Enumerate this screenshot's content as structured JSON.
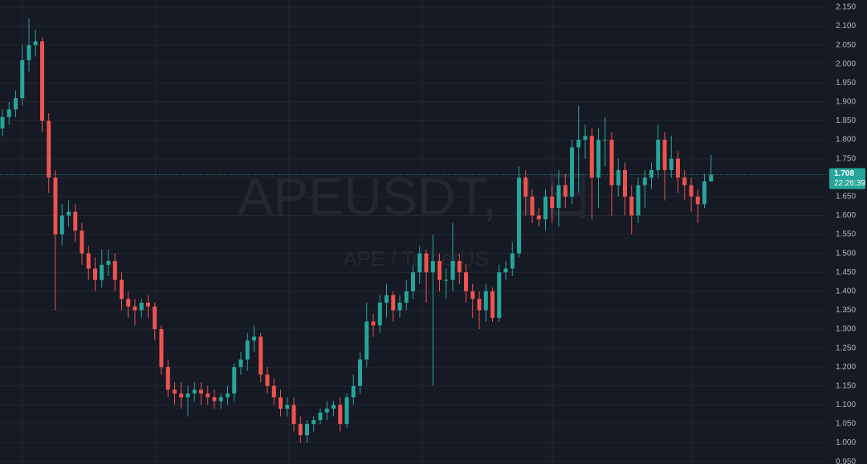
{
  "chart_data": {
    "type": "candlestick",
    "watermark": "APEUSDT, 1日",
    "watermark_subtitle": "APE / TetherUS",
    "last_price": 1.708,
    "countdown": "22:26:39",
    "up_color": "#26a69a",
    "down_color": "#ef5350",
    "grid": true,
    "ylim": [
      0.944,
      2.169
    ],
    "yticks": [
      {
        "value": 2.15,
        "label": "2.150"
      },
      {
        "value": 2.1,
        "label": "2.100"
      },
      {
        "value": 2.05,
        "label": "2.050"
      },
      {
        "value": 2.0,
        "label": "2.000"
      },
      {
        "value": 1.95,
        "label": "1.950"
      },
      {
        "value": 1.9,
        "label": "1.900"
      },
      {
        "value": 1.85,
        "label": "1.850"
      },
      {
        "value": 1.8,
        "label": "1.800"
      },
      {
        "value": 1.75,
        "label": "1.750"
      },
      {
        "value": 1.7,
        "label": "1.700"
      },
      {
        "value": 1.65,
        "label": "1.650"
      },
      {
        "value": 1.6,
        "label": "1.600"
      },
      {
        "value": 1.55,
        "label": "1.550"
      },
      {
        "value": 1.5,
        "label": "1.500"
      },
      {
        "value": 1.45,
        "label": "1.450"
      },
      {
        "value": 1.4,
        "label": "1.400"
      },
      {
        "value": 1.35,
        "label": "1.350"
      },
      {
        "value": 1.3,
        "label": "1.300"
      },
      {
        "value": 1.25,
        "label": "1.250"
      },
      {
        "value": 1.2,
        "label": "1.200"
      },
      {
        "value": 1.15,
        "label": "1.150"
      },
      {
        "value": 1.1,
        "label": "1.100"
      },
      {
        "value": 1.05,
        "label": "1.050"
      },
      {
        "value": 1.0,
        "label": "1.000"
      },
      {
        "value": 0.95,
        "label": "0.950"
      }
    ],
    "open": [
      1.83,
      1.86,
      1.88,
      1.91,
      2.01,
      2.05,
      2.06,
      1.85,
      1.7,
      1.55,
      1.6,
      1.61,
      1.56,
      1.5,
      1.46,
      1.43,
      1.47,
      1.48,
      1.43,
      1.38,
      1.36,
      1.35,
      1.37,
      1.36,
      1.3,
      1.2,
      1.14,
      1.13,
      1.12,
      1.13,
      1.14,
      1.13,
      1.12,
      1.11,
      1.12,
      1.13,
      1.2,
      1.22,
      1.27,
      1.28,
      1.18,
      1.15,
      1.12,
      1.09,
      1.1,
      1.05,
      1.02,
      1.05,
      1.06,
      1.08,
      1.09,
      1.1,
      1.05,
      1.12,
      1.15,
      1.22,
      1.32,
      1.31,
      1.37,
      1.39,
      1.35,
      1.37,
      1.4,
      1.45,
      1.5,
      1.45,
      1.48,
      1.43,
      1.43,
      1.48,
      1.45,
      1.4,
      1.38,
      1.35,
      1.4,
      1.33,
      1.45,
      1.46,
      1.5,
      1.7,
      1.65,
      1.6,
      1.59,
      1.65,
      1.62,
      1.68,
      1.65,
      1.78,
      1.8,
      1.81,
      1.7,
      1.8,
      1.8,
      1.68,
      1.72,
      1.65,
      1.6,
      1.68,
      1.7,
      1.72,
      1.8,
      1.72,
      1.75,
      1.7,
      1.68,
      1.65,
      1.63,
      1.69
    ],
    "high": [
      1.88,
      1.9,
      1.93,
      2.05,
      2.12,
      2.09,
      2.07,
      1.87,
      1.72,
      1.63,
      1.64,
      1.63,
      1.58,
      1.52,
      1.49,
      1.51,
      1.51,
      1.5,
      1.45,
      1.4,
      1.38,
      1.38,
      1.39,
      1.37,
      1.31,
      1.22,
      1.16,
      1.16,
      1.15,
      1.16,
      1.16,
      1.15,
      1.14,
      1.13,
      1.15,
      1.21,
      1.24,
      1.29,
      1.31,
      1.29,
      1.2,
      1.17,
      1.14,
      1.12,
      1.12,
      1.07,
      1.06,
      1.07,
      1.09,
      1.11,
      1.11,
      1.12,
      1.13,
      1.18,
      1.24,
      1.37,
      1.34,
      1.39,
      1.42,
      1.4,
      1.39,
      1.43,
      1.47,
      1.52,
      1.51,
      1.55,
      1.5,
      1.46,
      1.58,
      1.5,
      1.47,
      1.42,
      1.4,
      1.42,
      1.41,
      1.47,
      1.48,
      1.53,
      1.73,
      1.72,
      1.67,
      1.62,
      1.67,
      1.68,
      1.72,
      1.71,
      1.8,
      1.89,
      1.84,
      1.83,
      1.83,
      1.86,
      1.82,
      1.75,
      1.74,
      1.68,
      1.7,
      1.72,
      1.74,
      1.84,
      1.82,
      1.81,
      1.77,
      1.72,
      1.7,
      1.67,
      1.71,
      1.76
    ],
    "low": [
      1.81,
      1.84,
      1.86,
      1.89,
      1.98,
      2.02,
      1.82,
      1.66,
      1.35,
      1.52,
      1.57,
      1.53,
      1.47,
      1.43,
      1.4,
      1.41,
      1.44,
      1.4,
      1.35,
      1.33,
      1.31,
      1.33,
      1.33,
      1.27,
      1.18,
      1.12,
      1.1,
      1.09,
      1.07,
      1.11,
      1.1,
      1.1,
      1.09,
      1.09,
      1.1,
      1.11,
      1.18,
      1.19,
      1.24,
      1.16,
      1.13,
      1.1,
      1.07,
      1.07,
      1.03,
      1.0,
      1.0,
      1.03,
      1.05,
      1.06,
      1.07,
      1.03,
      1.04,
      1.1,
      1.13,
      1.2,
      1.28,
      1.29,
      1.33,
      1.32,
      1.33,
      1.35,
      1.38,
      1.42,
      1.37,
      1.15,
      1.4,
      1.38,
      1.4,
      1.42,
      1.37,
      1.33,
      1.3,
      1.32,
      1.32,
      1.32,
      1.43,
      1.44,
      1.49,
      1.6,
      1.58,
      1.57,
      1.56,
      1.58,
      1.57,
      1.62,
      1.63,
      1.66,
      1.75,
      1.59,
      1.62,
      1.73,
      1.6,
      1.65,
      1.6,
      1.55,
      1.58,
      1.62,
      1.67,
      1.7,
      1.64,
      1.7,
      1.66,
      1.64,
      1.61,
      1.58,
      1.62,
      1.69
    ],
    "close": [
      1.86,
      1.88,
      1.91,
      2.01,
      2.05,
      2.06,
      1.85,
      1.7,
      1.55,
      1.6,
      1.61,
      1.56,
      1.5,
      1.46,
      1.43,
      1.47,
      1.48,
      1.43,
      1.38,
      1.36,
      1.35,
      1.37,
      1.36,
      1.3,
      1.2,
      1.14,
      1.13,
      1.12,
      1.13,
      1.14,
      1.13,
      1.12,
      1.11,
      1.12,
      1.13,
      1.2,
      1.22,
      1.27,
      1.28,
      1.18,
      1.15,
      1.12,
      1.09,
      1.1,
      1.05,
      1.02,
      1.05,
      1.06,
      1.08,
      1.09,
      1.1,
      1.05,
      1.12,
      1.15,
      1.22,
      1.32,
      1.31,
      1.37,
      1.39,
      1.35,
      1.37,
      1.4,
      1.45,
      1.5,
      1.45,
      1.48,
      1.43,
      1.43,
      1.48,
      1.45,
      1.4,
      1.38,
      1.35,
      1.4,
      1.33,
      1.45,
      1.46,
      1.5,
      1.7,
      1.65,
      1.6,
      1.59,
      1.65,
      1.62,
      1.68,
      1.65,
      1.78,
      1.8,
      1.81,
      1.7,
      1.8,
      1.8,
      1.68,
      1.72,
      1.65,
      1.6,
      1.68,
      1.7,
      1.72,
      1.8,
      1.72,
      1.75,
      1.7,
      1.68,
      1.65,
      1.63,
      1.69,
      1.708
    ]
  }
}
